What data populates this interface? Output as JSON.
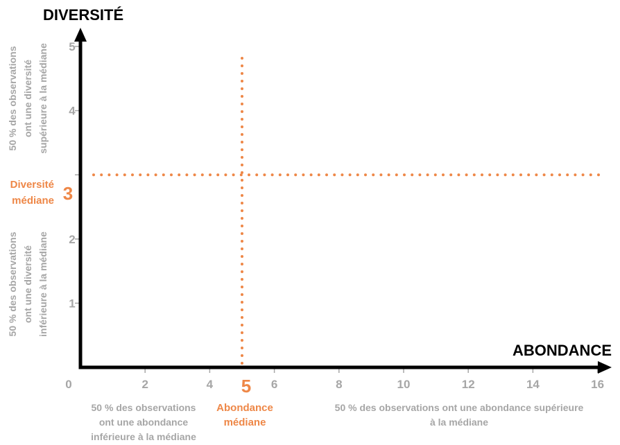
{
  "colors": {
    "axis": "#000000",
    "tick": "#a6a6a6",
    "median": "#ee8747"
  },
  "chart_data": {
    "type": "scatter",
    "xlabel": "ABONDANCE",
    "ylabel": "DIVERSITÉ",
    "xlim": [
      0,
      16.3
    ],
    "ylim": [
      0,
      5.5
    ],
    "xticks": [
      0,
      2,
      4,
      6,
      8,
      10,
      12,
      14,
      16
    ],
    "yticks": [
      1,
      2,
      3,
      4,
      5
    ],
    "grid": false,
    "median_x": {
      "value": 5,
      "label": "5",
      "caption": [
        "Abondance",
        "médiane"
      ]
    },
    "median_y": {
      "value": 3,
      "label": "3",
      "caption": [
        "Diversité",
        "médiane"
      ]
    },
    "annotations": {
      "x_below": [
        "50 % des observations",
        "ont une abondance",
        "inférieure à la médiane"
      ],
      "x_above": [
        "50 % des observations ont une abondance supérieure",
        "à la médiane"
      ],
      "y_above": [
        "50 % des observations",
        "ont une diversité",
        "supérieure à la médiane"
      ],
      "y_below": [
        "50 % des observations",
        "ont une diversité",
        "inférieure à la médiane"
      ]
    }
  }
}
